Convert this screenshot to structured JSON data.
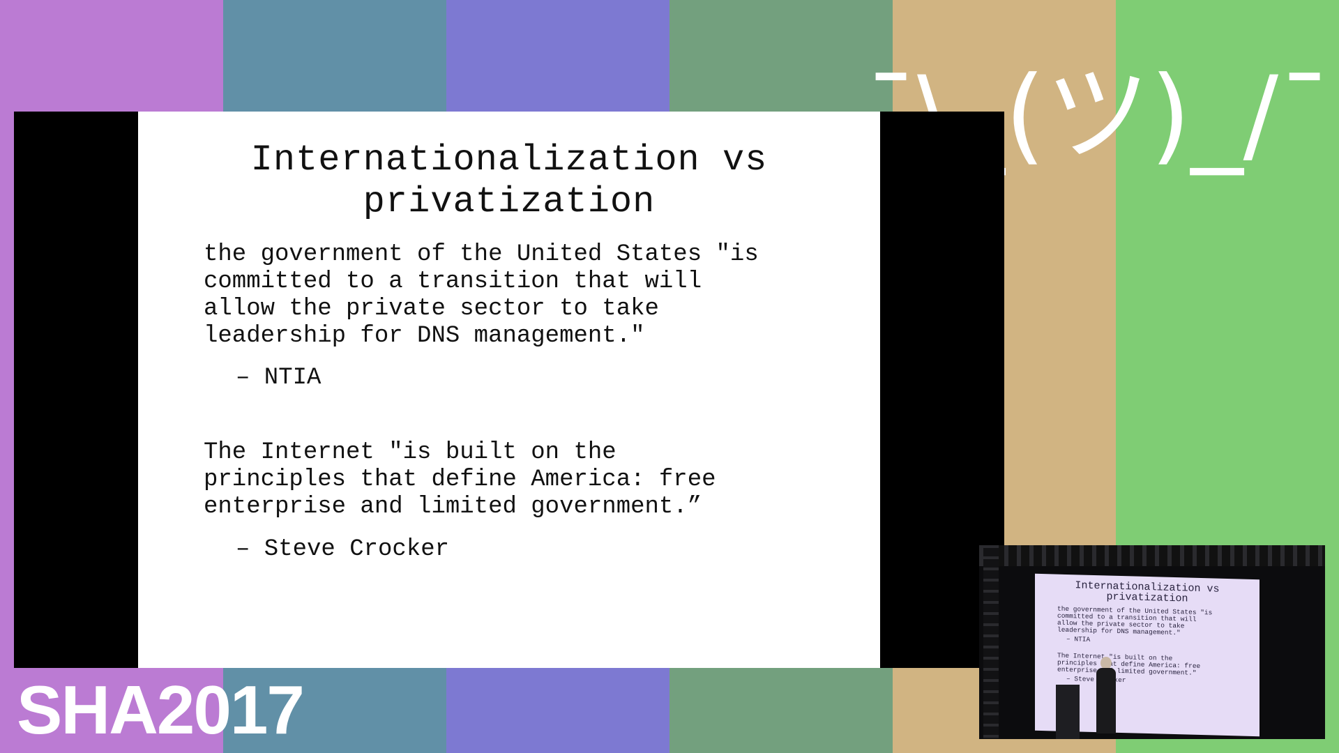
{
  "stripes": [
    "#bb7bd3",
    "#6190a7",
    "#7d79d2",
    "#73a07e",
    "#d1b482",
    "#7fcd74"
  ],
  "slide": {
    "title": "Internationalization vs\nprivatization",
    "quote1": "the government of the United States \"is\ncommitted to a transition that will\nallow the private sector to take\nleadership for DNS management.\"",
    "attrib1": "– NTIA",
    "quote2": "The Internet \"is built on the\nprinciples that define America: free\nenterprise and limited government.”",
    "attrib2": "– Steve Crocker"
  },
  "shrug": "¯\\_(ツ)_/¯",
  "brand": "SHA2017",
  "pip": {
    "title": "Internationalization vs\nprivatization",
    "quote1": "the government of the United States \"is\ncommitted to a transition that will\nallow the private sector to take\nleadership for DNS management.\"",
    "attrib1": "– NTIA",
    "quote2": "The Internet \"is built on the\nprinciples that define America: free\nenterprise and limited government.\"",
    "attrib2": "– Steve Crocker"
  }
}
